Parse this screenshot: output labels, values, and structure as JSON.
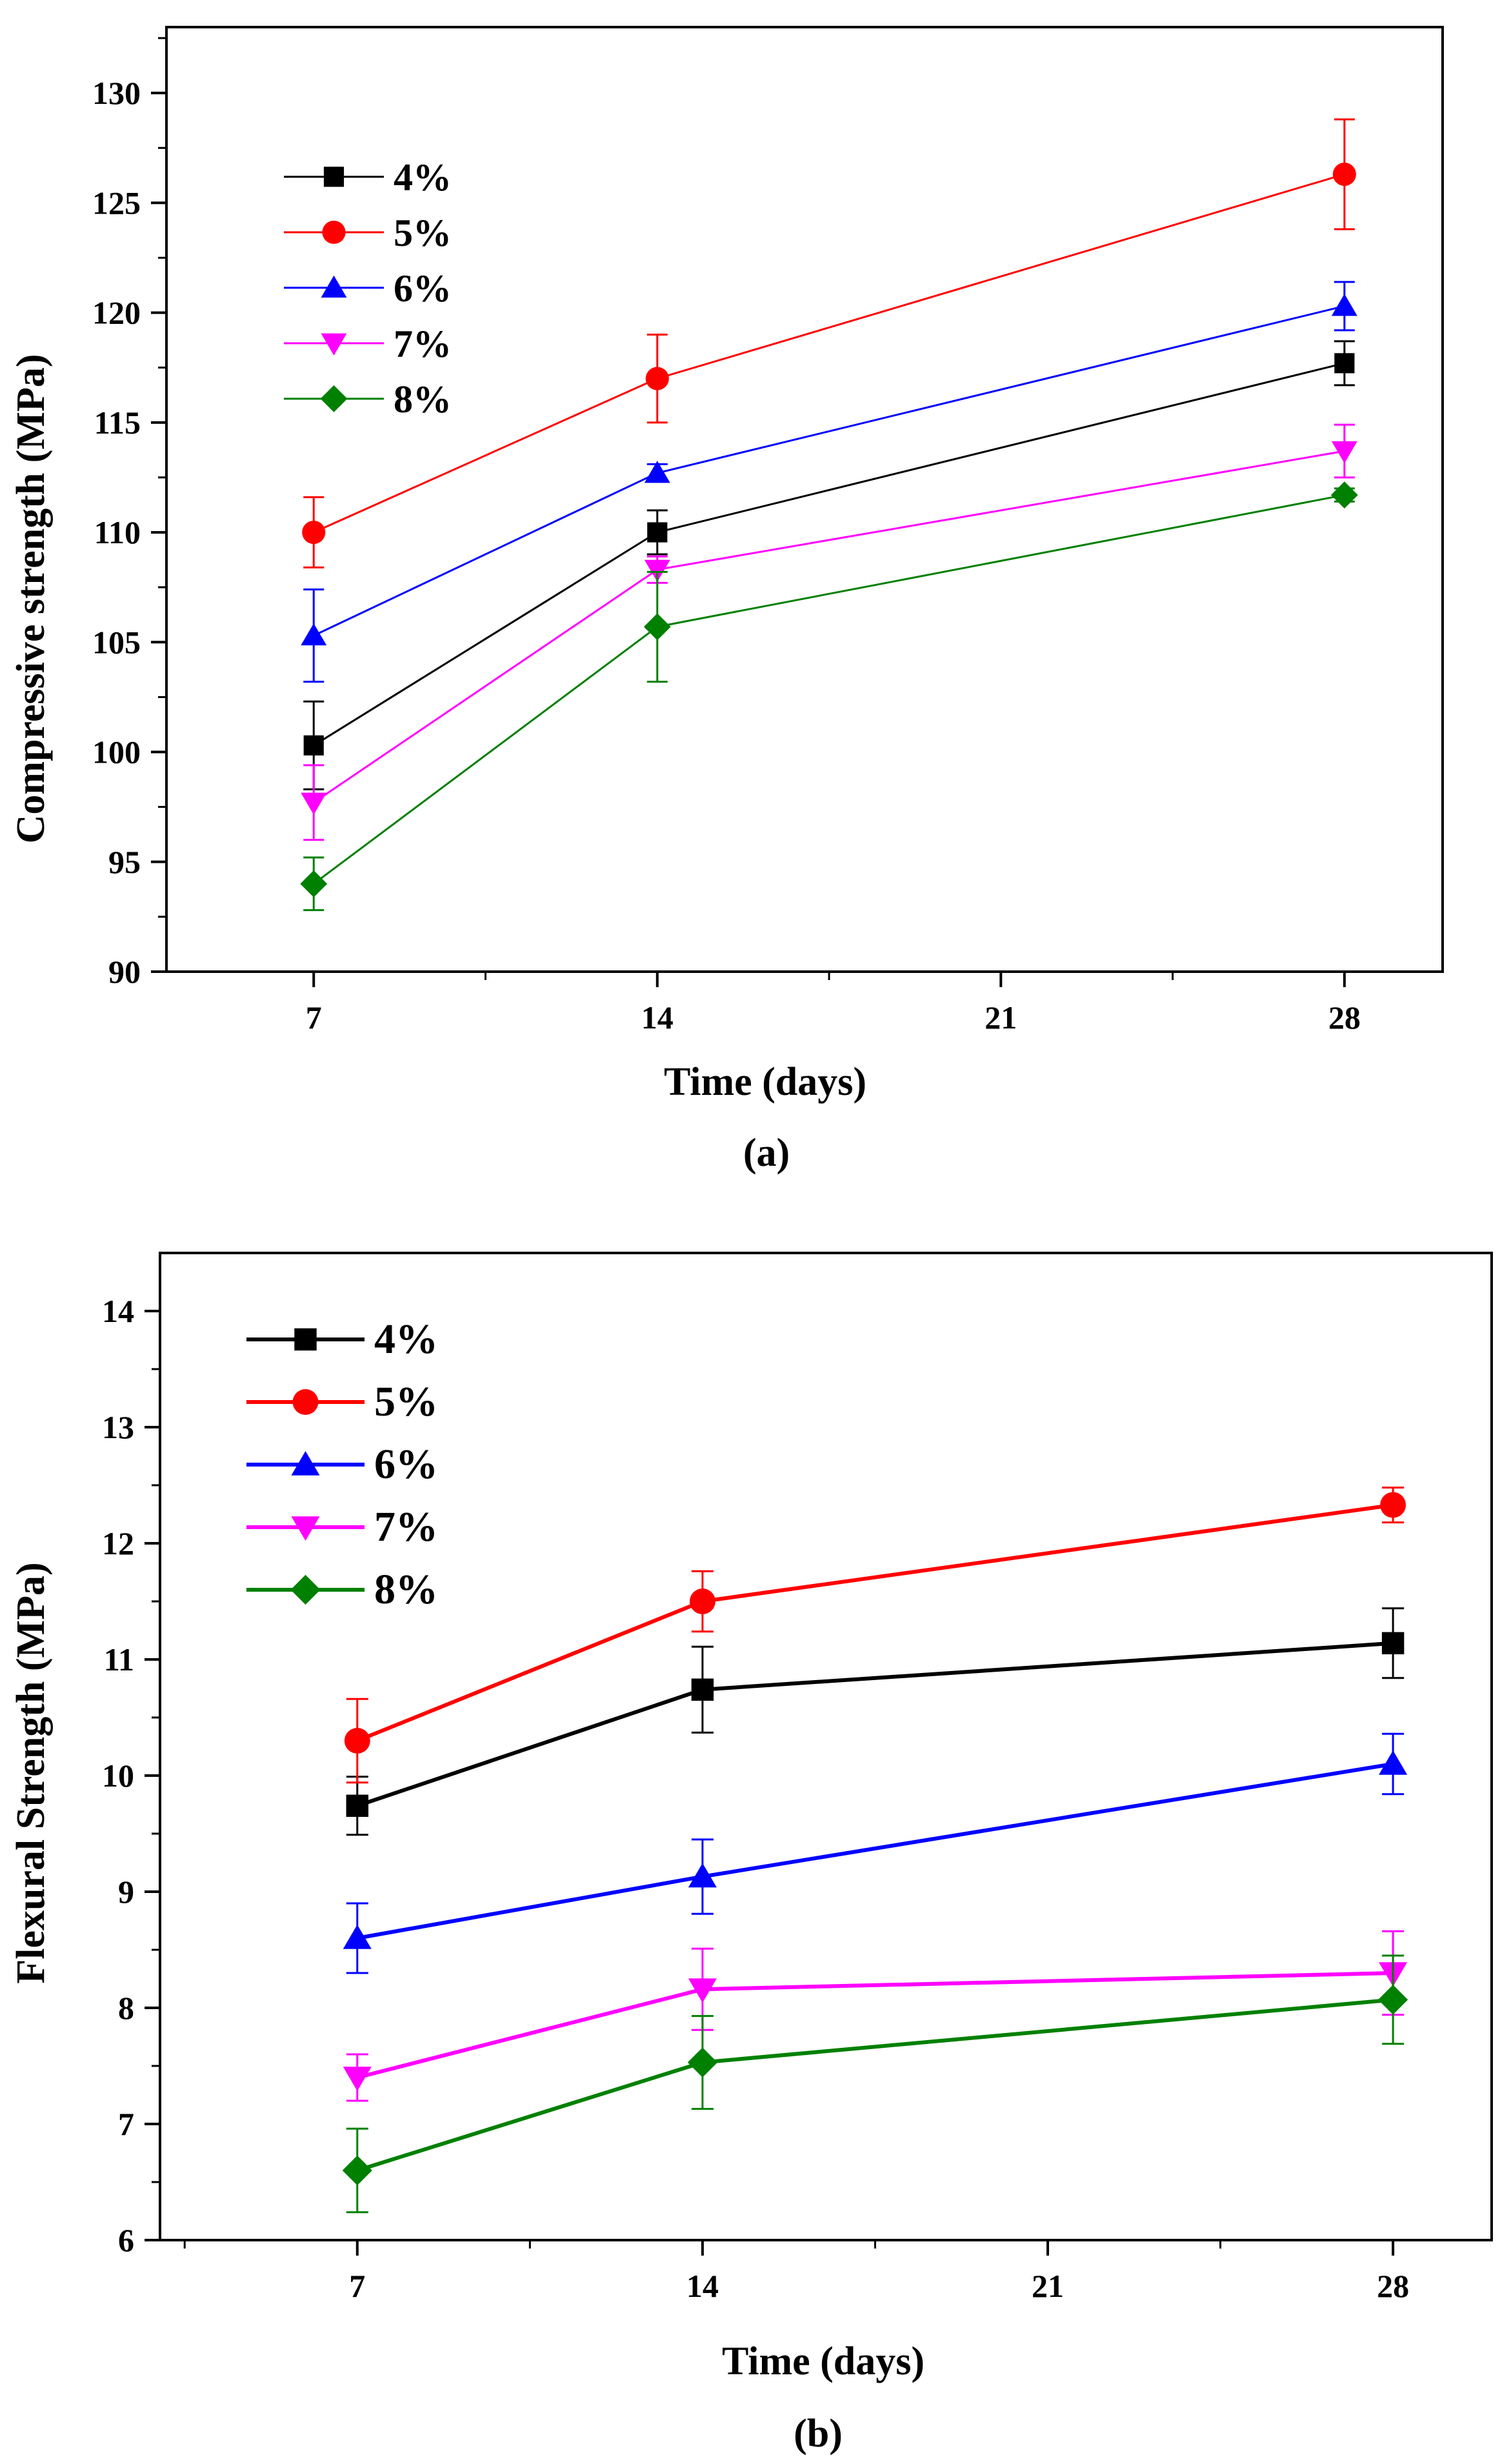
{
  "figure": {
    "panels": [
      {
        "id": "a",
        "caption": "(a)",
        "xlabel": "Time (days)",
        "ylabel": "Compressive strength (MPa)"
      },
      {
        "id": "b",
        "caption": "(b)",
        "xlabel": "Time (days)",
        "ylabel": "Flexural Strength (MPa)"
      }
    ]
  },
  "chart_data": [
    {
      "type": "line",
      "panel": "(a)",
      "xlabel": "Time (days)",
      "ylabel": "Compressive strength (MPa)",
      "x": [
        7,
        14,
        28
      ],
      "xlim": [
        4,
        30
      ],
      "ylim": [
        90,
        133
      ],
      "xticks": [
        7,
        14,
        21,
        28
      ],
      "yticks": [
        90,
        95,
        100,
        105,
        110,
        115,
        120,
        125,
        130
      ],
      "error_bars": true,
      "grid": false,
      "legend_position": "top-left",
      "series": [
        {
          "name": "4%",
          "color": "#000000",
          "marker": "square",
          "values": [
            100.3,
            110.0,
            117.7
          ],
          "errors": [
            2.0,
            1.0,
            1.0
          ]
        },
        {
          "name": "5%",
          "color": "#ff0000",
          "marker": "circle",
          "values": [
            110.0,
            117.0,
            126.3
          ],
          "errors": [
            1.6,
            2.0,
            2.5
          ]
        },
        {
          "name": "6%",
          "color": "#0000ff",
          "marker": "triangle-up",
          "values": [
            105.3,
            112.7,
            120.3
          ],
          "errors": [
            2.1,
            0.4,
            1.1
          ]
        },
        {
          "name": "7%",
          "color": "#ff00ff",
          "marker": "triangle-down",
          "values": [
            97.7,
            108.3,
            113.7
          ],
          "errors": [
            1.7,
            0.6,
            1.2
          ]
        },
        {
          "name": "8%",
          "color": "#008000",
          "marker": "diamond",
          "values": [
            94.0,
            105.7,
            111.7
          ],
          "errors": [
            1.2,
            2.5,
            0.3
          ]
        }
      ]
    },
    {
      "type": "line",
      "panel": "(b)",
      "xlabel": "Time (days)",
      "ylabel": "Flexural Strength (MPa)",
      "x": [
        7,
        14,
        28
      ],
      "xlim": [
        3,
        30
      ],
      "ylim": [
        6,
        14.5
      ],
      "xticks": [
        7,
        14,
        21,
        28
      ],
      "yticks": [
        6,
        7,
        8,
        9,
        10,
        11,
        12,
        13,
        14
      ],
      "error_bars": true,
      "grid": false,
      "legend_position": "top-left",
      "series": [
        {
          "name": "4%",
          "color": "#000000",
          "marker": "square",
          "values": [
            9.74,
            10.74,
            11.14
          ],
          "errors": [
            0.25,
            0.37,
            0.3
          ]
        },
        {
          "name": "5%",
          "color": "#ff0000",
          "marker": "circle",
          "values": [
            10.3,
            11.5,
            12.33
          ],
          "errors": [
            0.36,
            0.26,
            0.15
          ]
        },
        {
          "name": "6%",
          "color": "#0000ff",
          "marker": "triangle-up",
          "values": [
            8.6,
            9.13,
            10.1
          ],
          "errors": [
            0.3,
            0.32,
            0.26
          ]
        },
        {
          "name": "7%",
          "color": "#ff00ff",
          "marker": "triangle-down",
          "values": [
            7.4,
            8.16,
            8.3
          ],
          "errors": [
            0.2,
            0.35,
            0.36
          ]
        },
        {
          "name": "8%",
          "color": "#008000",
          "marker": "diamond",
          "values": [
            6.6,
            7.53,
            8.07
          ],
          "errors": [
            0.36,
            0.4,
            0.38
          ]
        }
      ]
    }
  ]
}
